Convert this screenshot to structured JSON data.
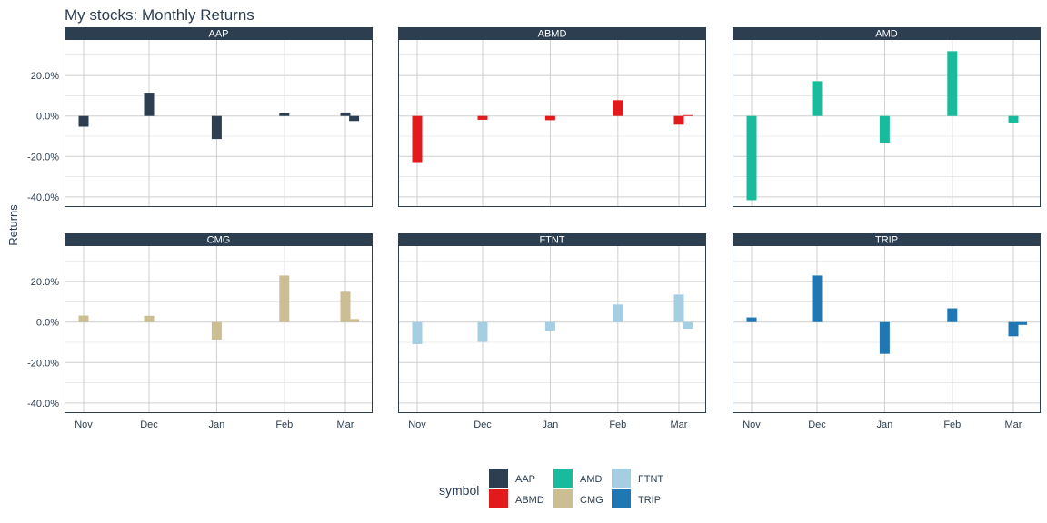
{
  "chart_data": {
    "type": "bar",
    "title": "My stocks: Monthly Returns",
    "xlabel": "",
    "ylabel": "Returns",
    "x_ticks": [
      "Nov",
      "Dec",
      "Jan",
      "Feb",
      "Mar"
    ],
    "y_ticks": [
      20,
      0,
      -20,
      -40
    ],
    "y_tick_labels": [
      "20.0%",
      "0.0%",
      "-20.0%",
      "-40.0%"
    ],
    "ylim": [
      -45,
      38
    ],
    "grid": true,
    "legend_title": "symbol",
    "legend_position": "bottom",
    "colors": {
      "AAP": "#2c3e50",
      "ABMD": "#e31a1c",
      "AMD": "#18bc9c",
      "CMG": "#ccbe93",
      "FTNT": "#a6cee3",
      "TRIP": "#1f78b4"
    },
    "facets": [
      {
        "symbol": "AAP",
        "bars": [
          {
            "date": "2017-11-01",
            "value": -5.3
          },
          {
            "date": "2017-12-01",
            "value": 11.5
          },
          {
            "date": "2018-01-01",
            "value": -11.4
          },
          {
            "date": "2018-02-01",
            "value": 1.3
          },
          {
            "date": "2018-03-01",
            "value": 1.7
          },
          {
            "date": "2018-03-05",
            "value": -2.5
          }
        ]
      },
      {
        "symbol": "ABMD",
        "bars": [
          {
            "date": "2017-11-01",
            "value": -22.8
          },
          {
            "date": "2017-12-01",
            "value": -1.9
          },
          {
            "date": "2018-01-01",
            "value": -2.1
          },
          {
            "date": "2018-02-01",
            "value": 7.8
          },
          {
            "date": "2018-03-01",
            "value": -4.3
          },
          {
            "date": "2018-03-05",
            "value": 0.4
          }
        ]
      },
      {
        "symbol": "AMD",
        "bars": [
          {
            "date": "2017-11-01",
            "value": -41.6
          },
          {
            "date": "2017-12-01",
            "value": 17.2
          },
          {
            "date": "2018-01-01",
            "value": -13.2
          },
          {
            "date": "2018-02-01",
            "value": 32.0
          },
          {
            "date": "2018-03-01",
            "value": -3.4
          }
        ]
      },
      {
        "symbol": "CMG",
        "bars": [
          {
            "date": "2017-11-01",
            "value": 3.2
          },
          {
            "date": "2017-12-01",
            "value": 3.1
          },
          {
            "date": "2018-01-01",
            "value": -8.8
          },
          {
            "date": "2018-02-01",
            "value": 23.0
          },
          {
            "date": "2018-03-01",
            "value": 15.0
          },
          {
            "date": "2018-03-05",
            "value": 1.5
          }
        ]
      },
      {
        "symbol": "FTNT",
        "bars": [
          {
            "date": "2017-11-01",
            "value": -10.9
          },
          {
            "date": "2017-12-01",
            "value": -9.8
          },
          {
            "date": "2018-01-01",
            "value": -4.2
          },
          {
            "date": "2018-02-01",
            "value": 8.7
          },
          {
            "date": "2018-03-01",
            "value": 13.6
          },
          {
            "date": "2018-03-05",
            "value": -3.3
          }
        ]
      },
      {
        "symbol": "TRIP",
        "bars": [
          {
            "date": "2017-11-01",
            "value": 2.3
          },
          {
            "date": "2017-12-01",
            "value": 23.0
          },
          {
            "date": "2018-01-01",
            "value": -15.7
          },
          {
            "date": "2018-02-01",
            "value": 6.8
          },
          {
            "date": "2018-03-01",
            "value": -7.0
          },
          {
            "date": "2018-03-05",
            "value": -1.4
          }
        ]
      }
    ]
  }
}
